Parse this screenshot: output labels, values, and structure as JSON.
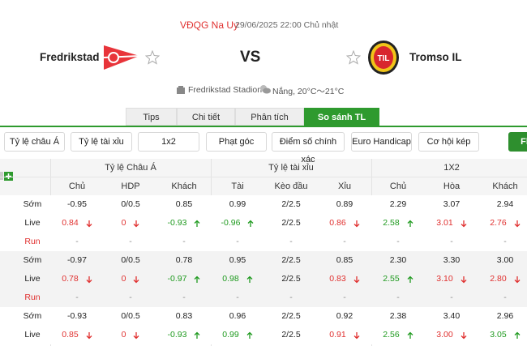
{
  "header": {
    "league": "VĐQG Na Uy",
    "datetime": "29/06/2025 22:00 Chủ nhật",
    "home_team": "Fredrikstad",
    "vs": "VS",
    "away_team": "Tromso IL",
    "away_logo_text": "TIL",
    "venue": "Fredrikstad Stadion",
    "weather": "Nắng, 20°C～21°C"
  },
  "tabs": [
    {
      "label": "Tips"
    },
    {
      "label": "Chi tiết"
    },
    {
      "label": "Phân tích"
    },
    {
      "label": "So sánh TL",
      "active": true
    }
  ],
  "filters": [
    {
      "label": "Tỷ lệ châu Á"
    },
    {
      "label": "Tỷ lệ tài xỉu"
    },
    {
      "label": "1x2"
    },
    {
      "label": "Phạt góc"
    },
    {
      "label": "Điểm số chính xác"
    },
    {
      "label": "Euro Handicap"
    },
    {
      "label": "Cơ hội kép"
    },
    {
      "label": "Fl",
      "active": true
    }
  ],
  "table": {
    "groups": [
      "Tỷ lệ Châu Á",
      "Tỷ lệ tài xỉu",
      "1X2"
    ],
    "columns": [
      "Chủ",
      "HDP",
      "Khách",
      "Tài",
      "Kèo đầu",
      "Xỉu",
      "Chủ",
      "Hòa",
      "Khách"
    ],
    "blocks": [
      {
        "rows": [
          {
            "label": "Sớm",
            "cells": [
              {
                "text": "-0.95"
              },
              {
                "text": "0/0.5"
              },
              {
                "text": "0.85"
              },
              {
                "text": "0.99"
              },
              {
                "text": "2/2.5"
              },
              {
                "text": "0.89"
              },
              {
                "text": "2.29"
              },
              {
                "text": "3.07"
              },
              {
                "text": "2.94"
              }
            ]
          },
          {
            "label": "Live",
            "cells": [
              {
                "text": "0.84",
                "trend": "down"
              },
              {
                "text": "0",
                "trend": "down"
              },
              {
                "text": "-0.93",
                "trend": "up"
              },
              {
                "text": "-0.96",
                "trend": "up"
              },
              {
                "text": "2/2.5"
              },
              {
                "text": "0.86",
                "trend": "down"
              },
              {
                "text": "2.58",
                "trend": "up"
              },
              {
                "text": "3.01",
                "trend": "down"
              },
              {
                "text": "2.76",
                "trend": "down"
              }
            ]
          },
          {
            "label": "Run",
            "cells": [
              {
                "text": "-"
              },
              {
                "text": "-"
              },
              {
                "text": "-"
              },
              {
                "text": "-"
              },
              {
                "text": "-"
              },
              {
                "text": "-"
              },
              {
                "text": "-"
              },
              {
                "text": "-"
              },
              {
                "text": "-"
              }
            ]
          }
        ]
      },
      {
        "rows": [
          {
            "label": "Sớm",
            "cells": [
              {
                "text": "-0.97"
              },
              {
                "text": "0/0.5"
              },
              {
                "text": "0.78"
              },
              {
                "text": "0.95"
              },
              {
                "text": "2/2.5"
              },
              {
                "text": "0.85"
              },
              {
                "text": "2.30"
              },
              {
                "text": "3.30"
              },
              {
                "text": "3.00"
              }
            ]
          },
          {
            "label": "Live",
            "cells": [
              {
                "text": "0.78",
                "trend": "down"
              },
              {
                "text": "0",
                "trend": "down"
              },
              {
                "text": "-0.97",
                "trend": "up"
              },
              {
                "text": "0.98",
                "trend": "up"
              },
              {
                "text": "2/2.5"
              },
              {
                "text": "0.83",
                "trend": "down"
              },
              {
                "text": "2.55",
                "trend": "up"
              },
              {
                "text": "3.10",
                "trend": "down"
              },
              {
                "text": "2.80",
                "trend": "down"
              }
            ]
          },
          {
            "label": "Run",
            "cells": [
              {
                "text": "-"
              },
              {
                "text": "-"
              },
              {
                "text": "-"
              },
              {
                "text": "-"
              },
              {
                "text": "-"
              },
              {
                "text": "-"
              },
              {
                "text": "-"
              },
              {
                "text": "-"
              },
              {
                "text": "-"
              }
            ]
          }
        ]
      },
      {
        "rows": [
          {
            "label": "Sớm",
            "cells": [
              {
                "text": "-0.93"
              },
              {
                "text": "0/0.5"
              },
              {
                "text": "0.83"
              },
              {
                "text": "0.96"
              },
              {
                "text": "2/2.5"
              },
              {
                "text": "0.92"
              },
              {
                "text": "2.38"
              },
              {
                "text": "3.40"
              },
              {
                "text": "2.96"
              }
            ]
          },
          {
            "label": "Live",
            "cells": [
              {
                "text": "0.85",
                "trend": "down"
              },
              {
                "text": "0",
                "trend": "down"
              },
              {
                "text": "-0.93",
                "trend": "up"
              },
              {
                "text": "0.99",
                "trend": "up"
              },
              {
                "text": "2/2.5"
              },
              {
                "text": "0.91",
                "trend": "down"
              },
              {
                "text": "2.56",
                "trend": "up"
              },
              {
                "text": "3.00",
                "trend": "down"
              },
              {
                "text": "3.05",
                "trend": "up"
              }
            ]
          }
        ]
      }
    ]
  }
}
